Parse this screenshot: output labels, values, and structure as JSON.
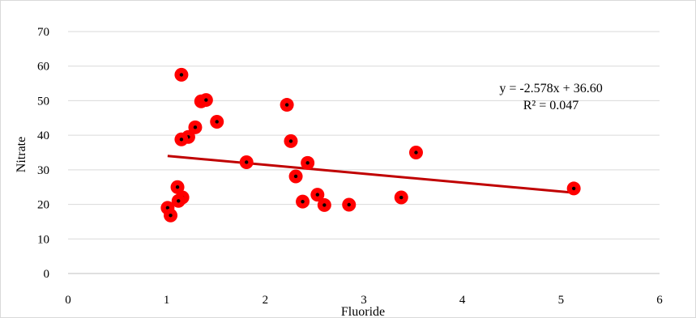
{
  "chart_data": {
    "type": "scatter",
    "title": "",
    "xlabel": "Fluoride",
    "ylabel": "Nitrate",
    "xlim": [
      0,
      6
    ],
    "ylim": [
      0,
      70
    ],
    "xticks": [
      "0",
      "1",
      "2",
      "3",
      "4",
      "5",
      "6"
    ],
    "yticks": [
      "0",
      "10",
      "20",
      "30",
      "40",
      "50",
      "60",
      "70"
    ],
    "grid": true,
    "legend": "none",
    "marker_color": "#ff0000",
    "marker_center_color": "#000000",
    "trendline_color": "#c00000",
    "points": [
      {
        "x": 1.15,
        "y": 57.5
      },
      {
        "x": 1.35,
        "y": 49.8
      },
      {
        "x": 1.4,
        "y": 50.2
      },
      {
        "x": 1.29,
        "y": 42.3
      },
      {
        "x": 1.51,
        "y": 43.9
      },
      {
        "x": 1.22,
        "y": 39.5
      },
      {
        "x": 1.15,
        "y": 38.8
      },
      {
        "x": 1.11,
        "y": 25.0
      },
      {
        "x": 1.16,
        "y": 22.0
      },
      {
        "x": 1.12,
        "y": 21.0
      },
      {
        "x": 1.01,
        "y": 19.0
      },
      {
        "x": 1.04,
        "y": 16.8
      },
      {
        "x": 1.81,
        "y": 32.2
      },
      {
        "x": 2.22,
        "y": 48.8
      },
      {
        "x": 2.26,
        "y": 38.3
      },
      {
        "x": 2.43,
        "y": 32.0
      },
      {
        "x": 2.31,
        "y": 28.1
      },
      {
        "x": 2.53,
        "y": 22.8
      },
      {
        "x": 2.38,
        "y": 20.8
      },
      {
        "x": 2.6,
        "y": 19.8
      },
      {
        "x": 2.85,
        "y": 19.9
      },
      {
        "x": 3.38,
        "y": 22.0
      },
      {
        "x": 3.53,
        "y": 35.0
      },
      {
        "x": 5.13,
        "y": 24.6
      }
    ],
    "trendline": {
      "slope": -2.578,
      "intercept": 36.6,
      "x_range": [
        1.01,
        5.13
      ],
      "equation": "y = -2.578x + 36.60",
      "r_squared": "R² = 0.047"
    }
  }
}
